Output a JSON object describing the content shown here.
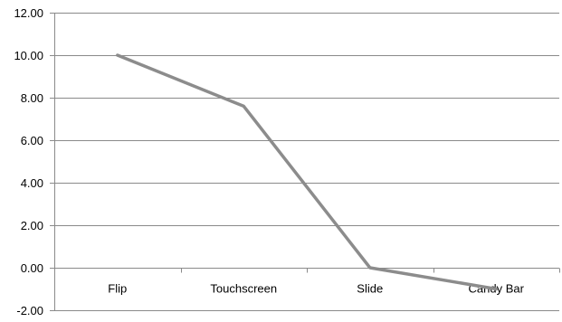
{
  "chart_data": {
    "type": "line",
    "title": "",
    "xlabel": "",
    "ylabel": "",
    "categories": [
      "Flip",
      "Touchscreen",
      "Slide",
      "Candy Bar"
    ],
    "series": [
      {
        "values": [
          10.0,
          7.6,
          0.0,
          -1.0
        ],
        "color": "#8c8c8c"
      }
    ],
    "ylim": [
      -2.0,
      12.0
    ],
    "yticks": [
      -2.0,
      0.0,
      2.0,
      4.0,
      6.0,
      8.0,
      10.0,
      12.0
    ],
    "ytick_labels": [
      "-2.00",
      "0.00",
      "2.00",
      "4.00",
      "6.00",
      "8.00",
      "10.00",
      "12.00"
    ],
    "grid": true,
    "legend": "none",
    "colors": {
      "grid": "#8a8a8a",
      "axis": "#8a8a8a",
      "line": "#8c8c8c"
    }
  }
}
